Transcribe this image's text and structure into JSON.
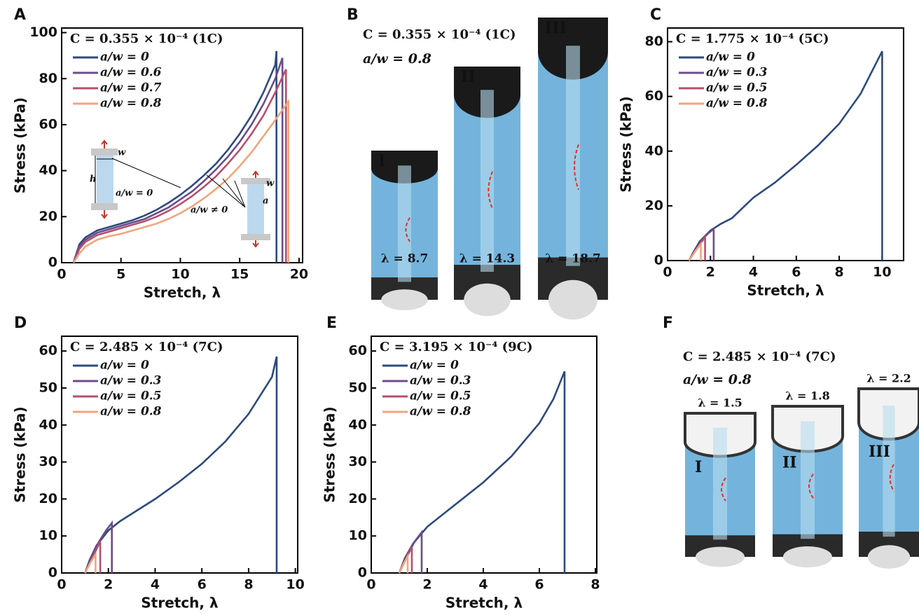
{
  "chart_data": [
    {
      "type": "line",
      "panel": "A",
      "annotation": "C = 0.355 × 10⁻⁴ (1C)",
      "xlabel": "Stretch, λ",
      "ylabel": "Stress (kPa)",
      "xlim": [
        0,
        20.3
      ],
      "ylim": [
        0,
        102
      ],
      "xticks": [
        0,
        5,
        10,
        15,
        20
      ],
      "yticks": [
        0,
        20,
        40,
        60,
        80,
        100
      ],
      "inset_labels": [
        "w",
        "h",
        "a/w = 0",
        "w",
        "a",
        "a/w ≠ 0"
      ],
      "series": [
        {
          "name": "a/w = 0",
          "color": "#2d4a7c",
          "x": [
            1,
            1.5,
            2,
            3,
            4,
            5,
            6,
            7,
            8,
            9,
            10,
            11,
            12,
            13,
            14,
            15,
            16,
            17,
            18,
            18.1,
            18.1
          ],
          "values": [
            0,
            8,
            11,
            14,
            15.5,
            17,
            18.5,
            20.5,
            23,
            26,
            29.5,
            33.5,
            38,
            43,
            49,
            56,
            64,
            74,
            86,
            92,
            0
          ]
        },
        {
          "name": "a/w = 0.6",
          "color": "#6b4c8a",
          "x": [
            1,
            1.5,
            2,
            3,
            4,
            5,
            6,
            7,
            8,
            9,
            10,
            11,
            12,
            13,
            14,
            15,
            16,
            17,
            18,
            18.6,
            18.6
          ],
          "values": [
            0,
            7,
            10,
            13,
            14.5,
            16,
            17.5,
            19,
            21.5,
            24,
            27.5,
            31,
            35.5,
            40.5,
            46,
            52.5,
            60,
            69,
            80,
            89,
            0
          ]
        },
        {
          "name": "a/w = 0.7",
          "color": "#b5506b",
          "x": [
            1,
            1.5,
            2,
            3,
            4,
            5,
            6,
            7,
            8,
            9,
            10,
            11,
            12,
            13,
            14,
            15,
            16,
            17,
            18,
            18.9,
            18.9
          ],
          "values": [
            0,
            6,
            9,
            12,
            13.5,
            15,
            16.5,
            18,
            20,
            22.5,
            25.5,
            29,
            33,
            37.5,
            43,
            49,
            56,
            64,
            74,
            84,
            0
          ]
        },
        {
          "name": "a/w = 0.8",
          "color": "#f0a57c",
          "x": [
            1,
            1.5,
            2,
            3,
            4,
            5,
            6,
            7,
            8,
            9,
            10,
            11,
            12,
            13,
            14,
            15,
            16,
            17,
            18,
            19.1,
            19.1
          ],
          "values": [
            0,
            4,
            7,
            10,
            11.5,
            12.5,
            14,
            15.5,
            17,
            19,
            21.5,
            24.5,
            28,
            32,
            36.5,
            42,
            48,
            55,
            62,
            70,
            0
          ]
        }
      ]
    },
    {
      "type": "line",
      "panel": "C",
      "annotation": "C = 1.775 × 10⁻⁴ (5C)",
      "xlabel": "Stretch, λ",
      "ylabel": "Stress (kPa)",
      "xlim": [
        0,
        11
      ],
      "ylim": [
        0,
        85
      ],
      "xticks": [
        0,
        2,
        4,
        6,
        8,
        10
      ],
      "yticks": [
        0,
        20,
        40,
        60,
        80
      ],
      "series": [
        {
          "name": "a/w = 0",
          "color": "#2d4a7c",
          "x": [
            1,
            1.2,
            1.5,
            2,
            2.5,
            3,
            4,
            5,
            6,
            7,
            8,
            9,
            10,
            10
          ],
          "values": [
            0,
            3,
            7,
            11,
            13.5,
            15.5,
            23,
            28.5,
            35,
            42,
            50,
            61,
            76.5,
            0
          ]
        },
        {
          "name": "a/w = 0.3",
          "color": "#6b4c8a",
          "x": [
            1,
            1.3,
            1.6,
            1.9,
            2.15,
            2.15
          ],
          "values": [
            0,
            4,
            7.5,
            10,
            11.5,
            0
          ]
        },
        {
          "name": "a/w = 0.5",
          "color": "#b5506b",
          "x": [
            1,
            1.3,
            1.55,
            1.75,
            1.75
          ],
          "values": [
            0,
            3.5,
            6.5,
            8.5,
            0
          ]
        },
        {
          "name": "a/w = 0.8",
          "color": "#f0a57c",
          "x": [
            1,
            1.3,
            1.55,
            1.55
          ],
          "values": [
            0,
            3.5,
            6,
            0
          ]
        }
      ]
    },
    {
      "type": "line",
      "panel": "D",
      "annotation": "C = 2.485 × 10⁻⁴ (7C)",
      "xlabel": "Stretch, λ",
      "ylabel": "Stress (kPa)",
      "xlim": [
        0,
        10.1
      ],
      "ylim": [
        0,
        64
      ],
      "xticks": [
        0,
        2,
        4,
        6,
        8,
        10
      ],
      "yticks": [
        0,
        10,
        20,
        30,
        40,
        50,
        60
      ],
      "series": [
        {
          "name": "a/w = 0",
          "color": "#2d4a7c",
          "x": [
            1,
            1.2,
            1.5,
            2,
            2.5,
            3,
            4,
            5,
            6,
            7,
            8,
            9,
            9.2,
            9.2
          ],
          "values": [
            0,
            3.5,
            7.5,
            11.5,
            14,
            16,
            20,
            24.5,
            29.5,
            35.5,
            43,
            53,
            58.5,
            0
          ]
        },
        {
          "name": "a/w = 0.3",
          "color": "#6b4c8a",
          "x": [
            1,
            1.3,
            1.6,
            1.9,
            2.15,
            2.15
          ],
          "values": [
            0,
            4.5,
            8.5,
            11.5,
            13.5,
            0
          ]
        },
        {
          "name": "a/w = 0.5",
          "color": "#b5506b",
          "x": [
            1,
            1.3,
            1.5,
            1.65,
            1.65
          ],
          "values": [
            0,
            4,
            6.5,
            8.5,
            0
          ]
        },
        {
          "name": "a/w = 0.8",
          "color": "#f0a57c",
          "x": [
            1,
            1.25,
            1.45,
            1.45
          ],
          "values": [
            0,
            3,
            5,
            0
          ]
        }
      ]
    },
    {
      "type": "line",
      "panel": "E",
      "annotation": "C = 3.195 × 10⁻⁴ (9C)",
      "xlabel": "Stretch, λ",
      "ylabel": "Stress (kPa)",
      "xlim": [
        0,
        8.05
      ],
      "ylim": [
        0,
        64
      ],
      "xticks": [
        0,
        2,
        4,
        6,
        8
      ],
      "yticks": [
        0,
        10,
        20,
        30,
        40,
        50,
        60
      ],
      "series": [
        {
          "name": "a/w = 0",
          "color": "#2d4a7c",
          "x": [
            1,
            1.2,
            1.5,
            2,
            2.5,
            3,
            4,
            5,
            6,
            6.5,
            6.9,
            6.9
          ],
          "values": [
            0,
            4,
            8,
            12.5,
            15.5,
            18.5,
            24.5,
            31.5,
            40.5,
            47,
            54.5,
            0
          ]
        },
        {
          "name": "a/w = 0.3",
          "color": "#6b4c8a",
          "x": [
            1,
            1.3,
            1.55,
            1.8,
            1.8
          ],
          "values": [
            0,
            5,
            8.5,
            11,
            0
          ]
        },
        {
          "name": "a/w = 0.5",
          "color": "#b5506b",
          "x": [
            1,
            1.25,
            1.45,
            1.45
          ],
          "values": [
            0,
            4,
            7,
            0
          ]
        },
        {
          "name": "a/w = 0.8",
          "color": "#f0a57c",
          "x": [
            1,
            1.15,
            1.3,
            1.3
          ],
          "values": [
            0,
            2.5,
            4.5,
            0
          ]
        }
      ]
    }
  ],
  "photo_panels": [
    {
      "panel": "B",
      "annotation": "C = 0.355 × 10⁻⁴ (1C)",
      "ratio": "a/w = 0.8",
      "photos": [
        {
          "label": "I",
          "stretch": "λ = 8.7"
        },
        {
          "label": "II",
          "stretch": "λ = 14.3"
        },
        {
          "label": "III",
          "stretch": "λ = 18.7"
        }
      ]
    },
    {
      "panel": "F",
      "annotation": "C = 2.485 × 10⁻⁴ (7C)",
      "ratio": "a/w = 0.8",
      "photos": [
        {
          "label": "I",
          "stretch": "λ = 1.5"
        },
        {
          "label": "II",
          "stretch": "λ = 1.8"
        },
        {
          "label": "III",
          "stretch": "λ = 2.2"
        }
      ]
    }
  ]
}
